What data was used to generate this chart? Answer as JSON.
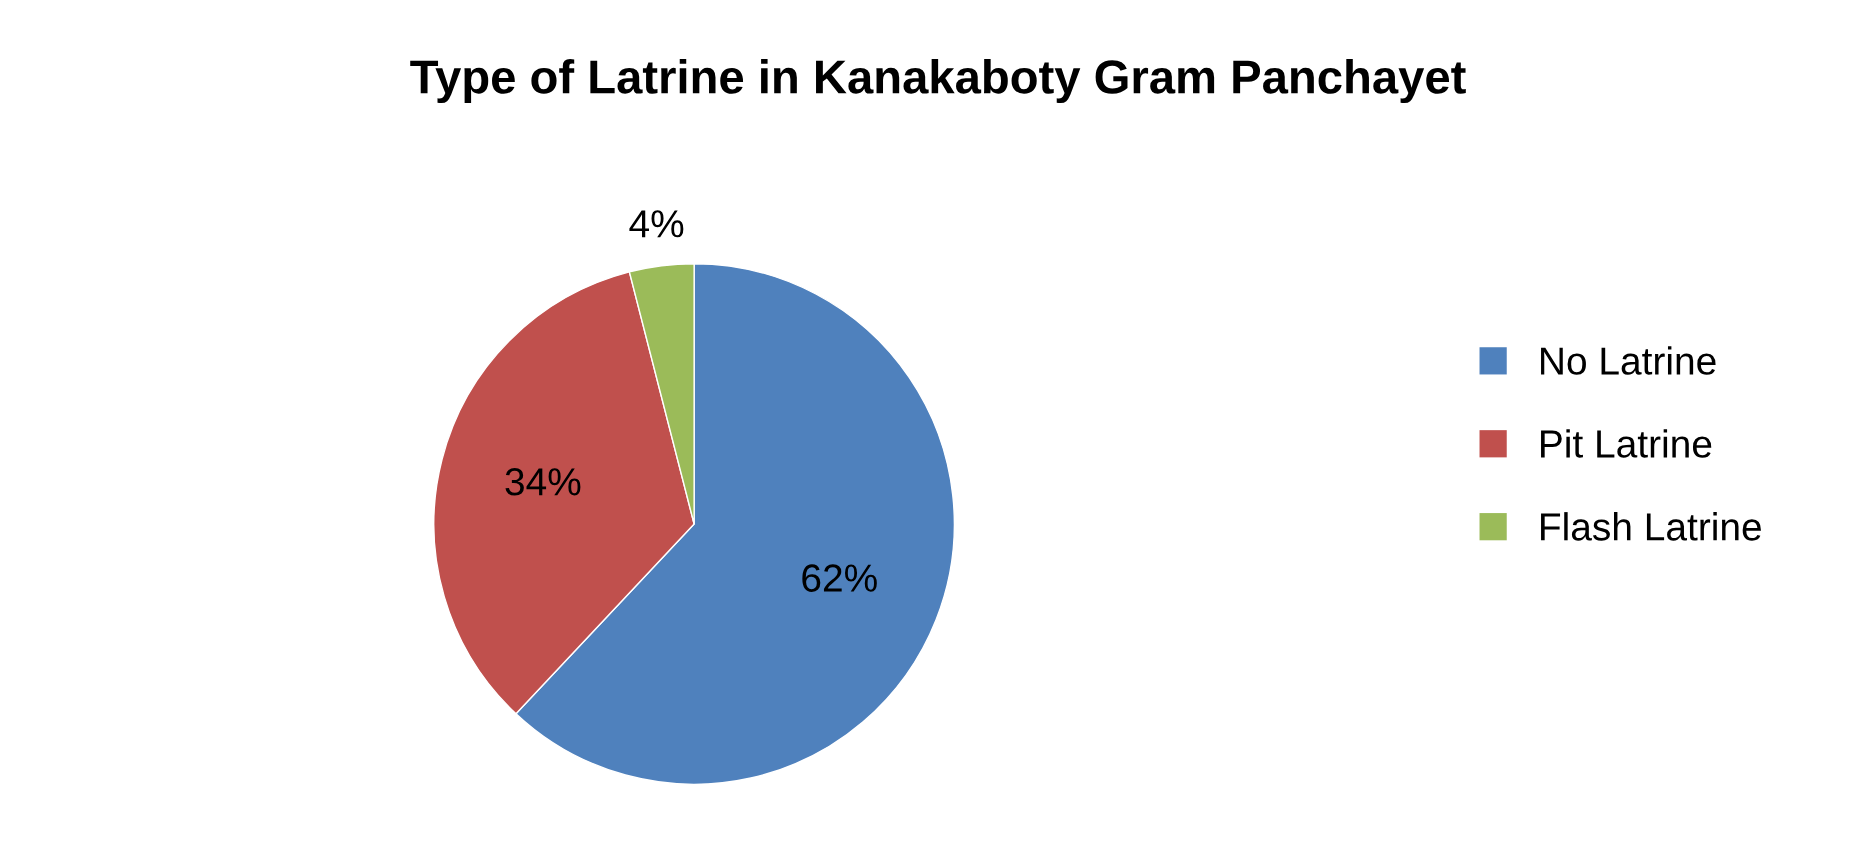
{
  "chart_data": {
    "type": "pie",
    "title": "Type of Latrine in Kanakaboty Gram Panchayet",
    "categories": [
      "No Latrine",
      "Pit Latrine",
      "Flash Latrine"
    ],
    "values": [
      62,
      34,
      4
    ],
    "colors": [
      "#4f81bd",
      "#c0504d",
      "#9bbb59"
    ],
    "value_labels": [
      "62%",
      "34%",
      "4%"
    ],
    "legend": "right"
  }
}
